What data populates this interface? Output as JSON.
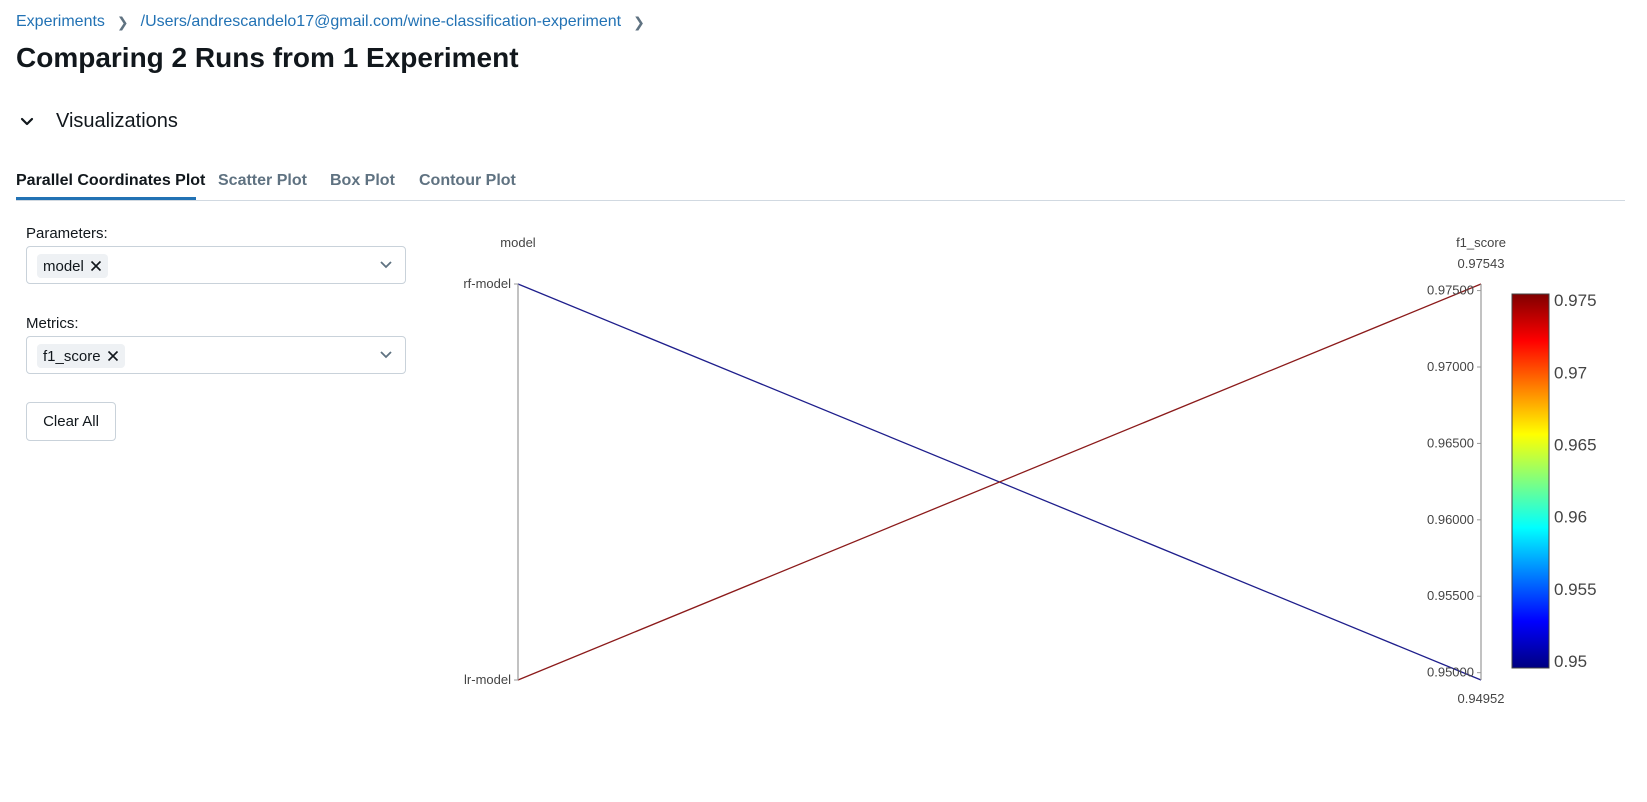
{
  "breadcrumb": {
    "items": [
      "Experiments",
      "/Users/andrescandelo17@gmail.com/wine-classification-experiment"
    ]
  },
  "page_title": "Comparing 2 Runs from 1 Experiment",
  "section": {
    "label": "Visualizations"
  },
  "tabs": [
    {
      "label": "Parallel Coordinates Plot",
      "active": true
    },
    {
      "label": "Scatter Plot",
      "active": false
    },
    {
      "label": "Box Plot",
      "active": false
    },
    {
      "label": "Contour Plot",
      "active": false
    }
  ],
  "controls": {
    "parameters_label": "Parameters:",
    "parameters_selected": [
      "model"
    ],
    "metrics_label": "Metrics:",
    "metrics_selected": [
      "f1_score"
    ],
    "clear_all_label": "Clear All"
  },
  "chart_data": {
    "type": "parallel_coordinates",
    "dimensions": [
      {
        "name": "model",
        "kind": "categorical",
        "categories": [
          "rf-model",
          "lr-model"
        ]
      },
      {
        "name": "f1_score",
        "kind": "numeric",
        "range": [
          0.94952,
          0.97543
        ],
        "range_labels": {
          "max": "0.97543",
          "min": "0.94952"
        },
        "ticks": [
          "0.97500",
          "0.97000",
          "0.96500",
          "0.96000",
          "0.95500",
          "0.95000"
        ]
      }
    ],
    "runs": [
      {
        "model": "rf-model",
        "f1_score": 0.94952
      },
      {
        "model": "lr-model",
        "f1_score": 0.97543
      }
    ],
    "colorscale": {
      "name": "jet",
      "range": [
        0.94952,
        0.97543
      ],
      "ticks": [
        "0.975",
        "0.97",
        "0.965",
        "0.96",
        "0.955",
        "0.95"
      ]
    },
    "line_colors": {
      "low": "#1e1e8c",
      "high": "#8b1a1a"
    }
  }
}
